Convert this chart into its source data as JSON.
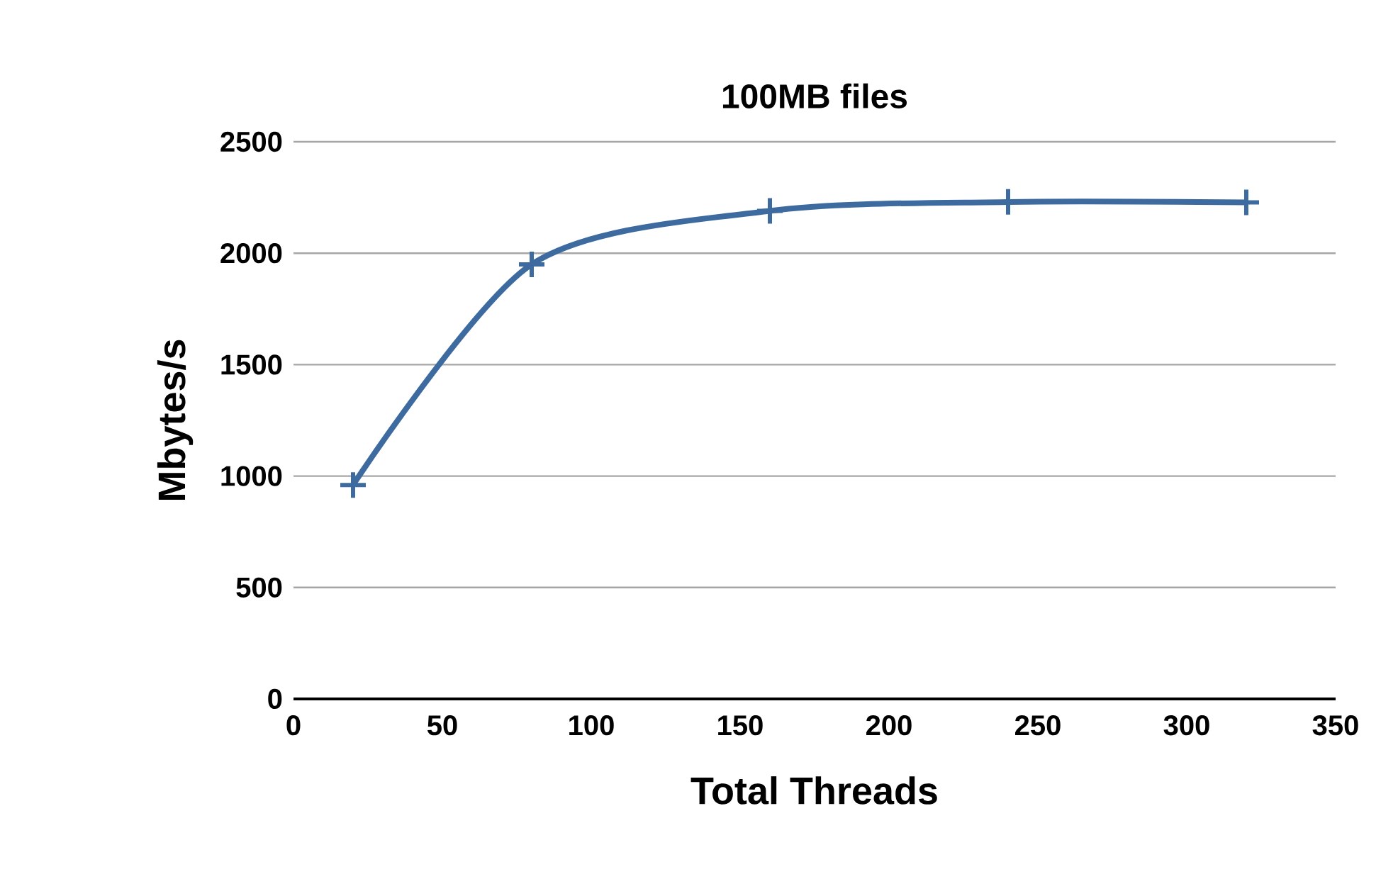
{
  "chart_data": {
    "type": "line",
    "title": "100MB files",
    "xlabel": "Total Threads",
    "ylabel": "Mbytes/s",
    "x": [
      20,
      80,
      160,
      240,
      320
    ],
    "series": [
      {
        "color": "#3d6b9f",
        "values": [
          960,
          1950,
          2190,
          2230,
          2228
        ]
      }
    ],
    "xlim": [
      0,
      350
    ],
    "xticks": [
      0,
      50,
      100,
      150,
      200,
      250,
      300,
      350
    ],
    "ylim": [
      0,
      2500
    ],
    "yticks": [
      0,
      500,
      1000,
      1500,
      2000,
      2500
    ],
    "grid": "y",
    "marker": "cross",
    "line_style": "solid"
  }
}
